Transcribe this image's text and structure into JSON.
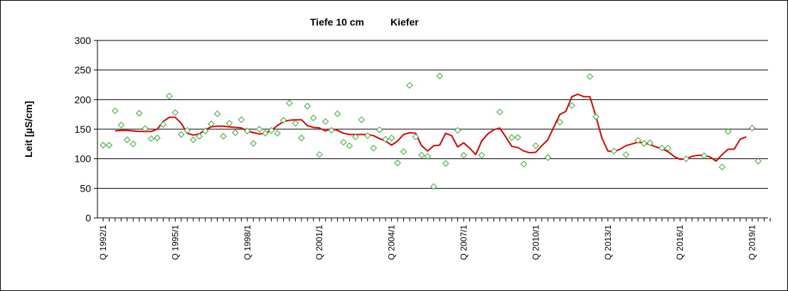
{
  "chart_data": {
    "type": "scatter",
    "title_left": "Tiefe  10 cm",
    "title_right": "Kiefer",
    "ylabel": "Leit [µS/cm]",
    "ylim": [
      0,
      300
    ],
    "yticks": [
      0,
      50,
      100,
      150,
      200,
      250,
      300
    ],
    "y_gridlines": true,
    "x_range_quarters": [
      0,
      111
    ],
    "x_tick_labels": [
      {
        "label": "Q 1992/1",
        "quarter": 0
      },
      {
        "label": "Q 1995/1",
        "quarter": 12
      },
      {
        "label": "Q 1998/1",
        "quarter": 24
      },
      {
        "label": "Q 2001/1",
        "quarter": 36
      },
      {
        "label": "Q 2004/1",
        "quarter": 48
      },
      {
        "label": "Q 2007/1",
        "quarter": 60
      },
      {
        "label": "Q 2010/1",
        "quarter": 72
      },
      {
        "label": "Q 2013/1",
        "quarter": 84
      },
      {
        "label": "Q 2016/1",
        "quarter": 96
      },
      {
        "label": "Q 2019/1",
        "quarter": 108
      }
    ],
    "series": [
      {
        "kind": "markers",
        "marker": "diamond",
        "color": "#33aa33",
        "points": [
          [
            0,
            123
          ],
          [
            1,
            123
          ],
          [
            2,
            181
          ],
          [
            3,
            157
          ],
          [
            4,
            132
          ],
          [
            5,
            125
          ],
          [
            6,
            177
          ],
          [
            7,
            151
          ],
          [
            8,
            134
          ],
          [
            9,
            135
          ],
          [
            10,
            158
          ],
          [
            11,
            206
          ],
          [
            12,
            178
          ],
          [
            13,
            141
          ],
          [
            14,
            148
          ],
          [
            15,
            132
          ],
          [
            16,
            138
          ],
          [
            17,
            147
          ],
          [
            18,
            159
          ],
          [
            19,
            176
          ],
          [
            20,
            138
          ],
          [
            21,
            160
          ],
          [
            22,
            144
          ],
          [
            23,
            166
          ],
          [
            24,
            147
          ],
          [
            25,
            126
          ],
          [
            26,
            150
          ],
          [
            27,
            143
          ],
          [
            28,
            148
          ],
          [
            29,
            143
          ],
          [
            30,
            165
          ],
          [
            31,
            194
          ],
          [
            32,
            160
          ],
          [
            33,
            135
          ],
          [
            34,
            189
          ],
          [
            35,
            169
          ],
          [
            36,
            107
          ],
          [
            37,
            163
          ],
          [
            38,
            148
          ],
          [
            39,
            176
          ],
          [
            40,
            128
          ],
          [
            41,
            122
          ],
          [
            42,
            137
          ],
          [
            43,
            166
          ],
          [
            44,
            139
          ],
          [
            45,
            118
          ],
          [
            46,
            149
          ],
          [
            47,
            133
          ],
          [
            48,
            135
          ],
          [
            49,
            93
          ],
          [
            50,
            112
          ],
          [
            51,
            224
          ],
          [
            52,
            137
          ],
          [
            53,
            106
          ],
          [
            54,
            104
          ],
          [
            55,
            53
          ],
          [
            56,
            240
          ],
          [
            57,
            92
          ],
          [
            59,
            148
          ],
          [
            60,
            106
          ],
          [
            63,
            106
          ],
          [
            66,
            179
          ],
          [
            68,
            136
          ],
          [
            69,
            136
          ],
          [
            70,
            91
          ],
          [
            72,
            122
          ],
          [
            74,
            102
          ],
          [
            76,
            162
          ],
          [
            78,
            190
          ],
          [
            81,
            239
          ],
          [
            82,
            171
          ],
          [
            85,
            113
          ],
          [
            87,
            107
          ],
          [
            89,
            131
          ],
          [
            90,
            126
          ],
          [
            91,
            127
          ],
          [
            93,
            118
          ],
          [
            94,
            118
          ],
          [
            97,
            100
          ],
          [
            100,
            105
          ],
          [
            103,
            86
          ],
          [
            104,
            146
          ],
          [
            108,
            152
          ],
          [
            109,
            96
          ]
        ]
      },
      {
        "kind": "line",
        "color": "#e00000",
        "points": [
          [
            2,
            147
          ],
          [
            3,
            148
          ],
          [
            4,
            148
          ],
          [
            5,
            147
          ],
          [
            6,
            146
          ],
          [
            7,
            146
          ],
          [
            8,
            146
          ],
          [
            9,
            150
          ],
          [
            10,
            163
          ],
          [
            11,
            170
          ],
          [
            12,
            170
          ],
          [
            13,
            160
          ],
          [
            14,
            143
          ],
          [
            15,
            140
          ],
          [
            16,
            142
          ],
          [
            17,
            149
          ],
          [
            18,
            154
          ],
          [
            19,
            155
          ],
          [
            20,
            155
          ],
          [
            21,
            154
          ],
          [
            22,
            153
          ],
          [
            23,
            152
          ],
          [
            24,
            147
          ],
          [
            25,
            144
          ],
          [
            26,
            142
          ],
          [
            27,
            143
          ],
          [
            28,
            148
          ],
          [
            29,
            156
          ],
          [
            30,
            163
          ],
          [
            31,
            165
          ],
          [
            32,
            166
          ],
          [
            33,
            166
          ],
          [
            34,
            156
          ],
          [
            35,
            153
          ],
          [
            36,
            152
          ],
          [
            37,
            147
          ],
          [
            38,
            151
          ],
          [
            39,
            148
          ],
          [
            40,
            143
          ],
          [
            41,
            141
          ],
          [
            42,
            141
          ],
          [
            43,
            141
          ],
          [
            44,
            141
          ],
          [
            45,
            139
          ],
          [
            46,
            134
          ],
          [
            47,
            130
          ],
          [
            48,
            123
          ],
          [
            49,
            130
          ],
          [
            50,
            141
          ],
          [
            51,
            144
          ],
          [
            52,
            143
          ],
          [
            53,
            122
          ],
          [
            54,
            113
          ],
          [
            55,
            122
          ],
          [
            56,
            123
          ],
          [
            57,
            143
          ],
          [
            58,
            139
          ],
          [
            59,
            120
          ],
          [
            60,
            127
          ],
          [
            61,
            118
          ],
          [
            62,
            107
          ],
          [
            63,
            130
          ],
          [
            64,
            142
          ],
          [
            65,
            149
          ],
          [
            66,
            152
          ],
          [
            67,
            137
          ],
          [
            68,
            121
          ],
          [
            69,
            119
          ],
          [
            70,
            113
          ],
          [
            71,
            110
          ],
          [
            72,
            111
          ],
          [
            73,
            122
          ],
          [
            74,
            132
          ],
          [
            75,
            154
          ],
          [
            76,
            175
          ],
          [
            77,
            180
          ],
          [
            78,
            205
          ],
          [
            79,
            209
          ],
          [
            80,
            205
          ],
          [
            81,
            205
          ],
          [
            82,
            172
          ],
          [
            83,
            135
          ],
          [
            84,
            113
          ],
          [
            85,
            112
          ],
          [
            86,
            116
          ],
          [
            87,
            122
          ],
          [
            88,
            125
          ],
          [
            89,
            128
          ],
          [
            90,
            127
          ],
          [
            91,
            124
          ],
          [
            92,
            120
          ],
          [
            93,
            117
          ],
          [
            94,
            112
          ],
          [
            95,
            104
          ],
          [
            96,
            99
          ],
          [
            97,
            100
          ],
          [
            98,
            104
          ],
          [
            99,
            106
          ],
          [
            100,
            106
          ],
          [
            101,
            103
          ],
          [
            102,
            96
          ],
          [
            103,
            107
          ],
          [
            104,
            116
          ],
          [
            105,
            116
          ],
          [
            106,
            133
          ],
          [
            107,
            137
          ]
        ]
      }
    ]
  }
}
